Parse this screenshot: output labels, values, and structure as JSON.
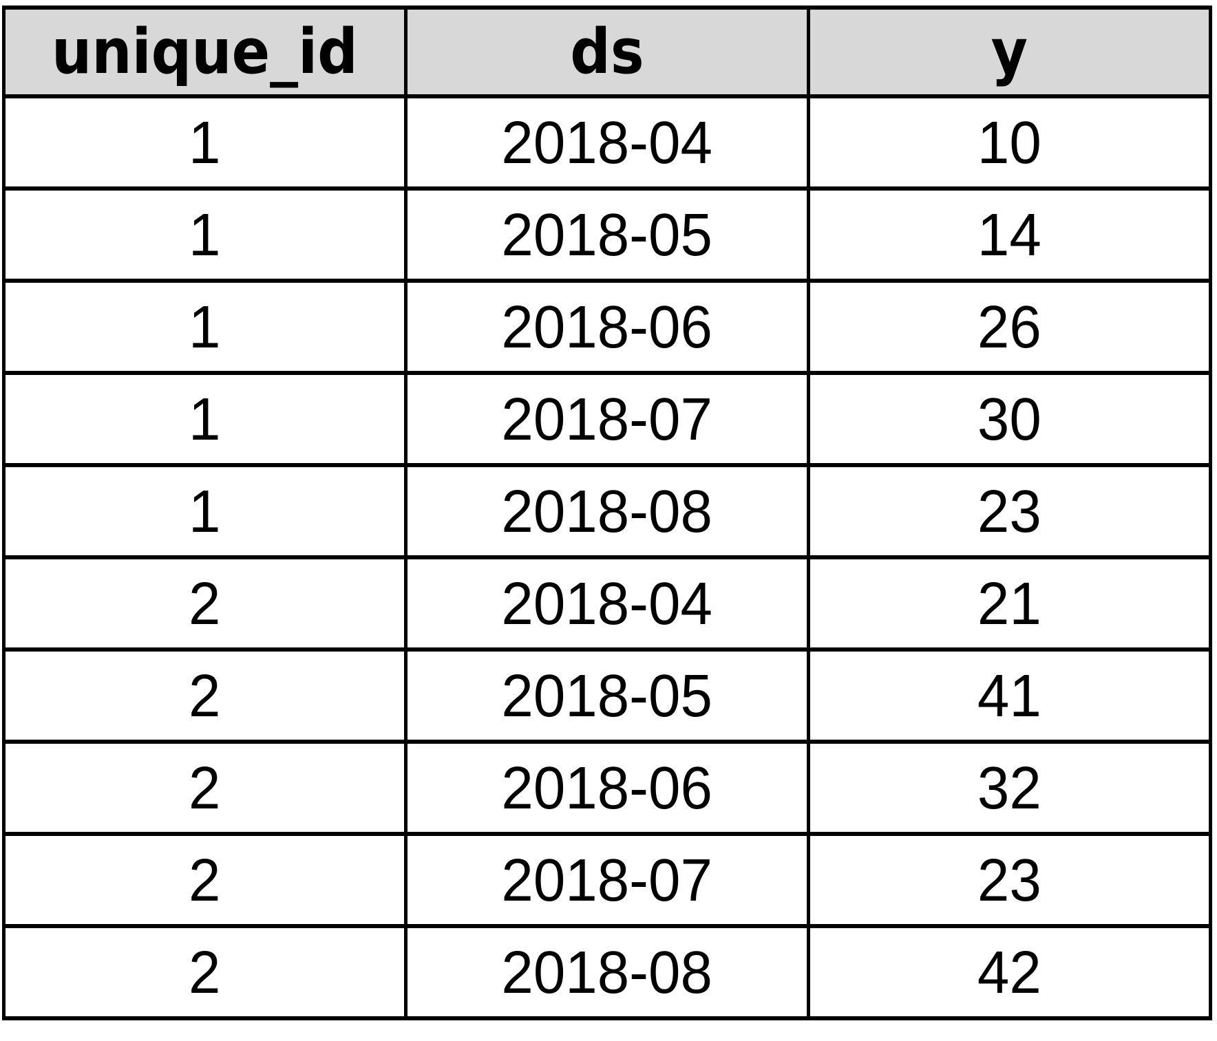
{
  "chart_data": {
    "type": "table",
    "columns": [
      "unique_id",
      "ds",
      "y"
    ],
    "rows": [
      [
        "1",
        "2018-04",
        "10"
      ],
      [
        "1",
        "2018-05",
        "14"
      ],
      [
        "1",
        "2018-06",
        "26"
      ],
      [
        "1",
        "2018-07",
        "30"
      ],
      [
        "1",
        "2018-08",
        "23"
      ],
      [
        "2",
        "2018-04",
        "21"
      ],
      [
        "2",
        "2018-05",
        "41"
      ],
      [
        "2",
        "2018-06",
        "32"
      ],
      [
        "2",
        "2018-07",
        "23"
      ],
      [
        "2",
        "2018-08",
        "42"
      ]
    ],
    "layout": {
      "header_bg": "#d8d8d8",
      "border_color": "#000000",
      "text_color": "#000000",
      "grid": "on"
    }
  }
}
